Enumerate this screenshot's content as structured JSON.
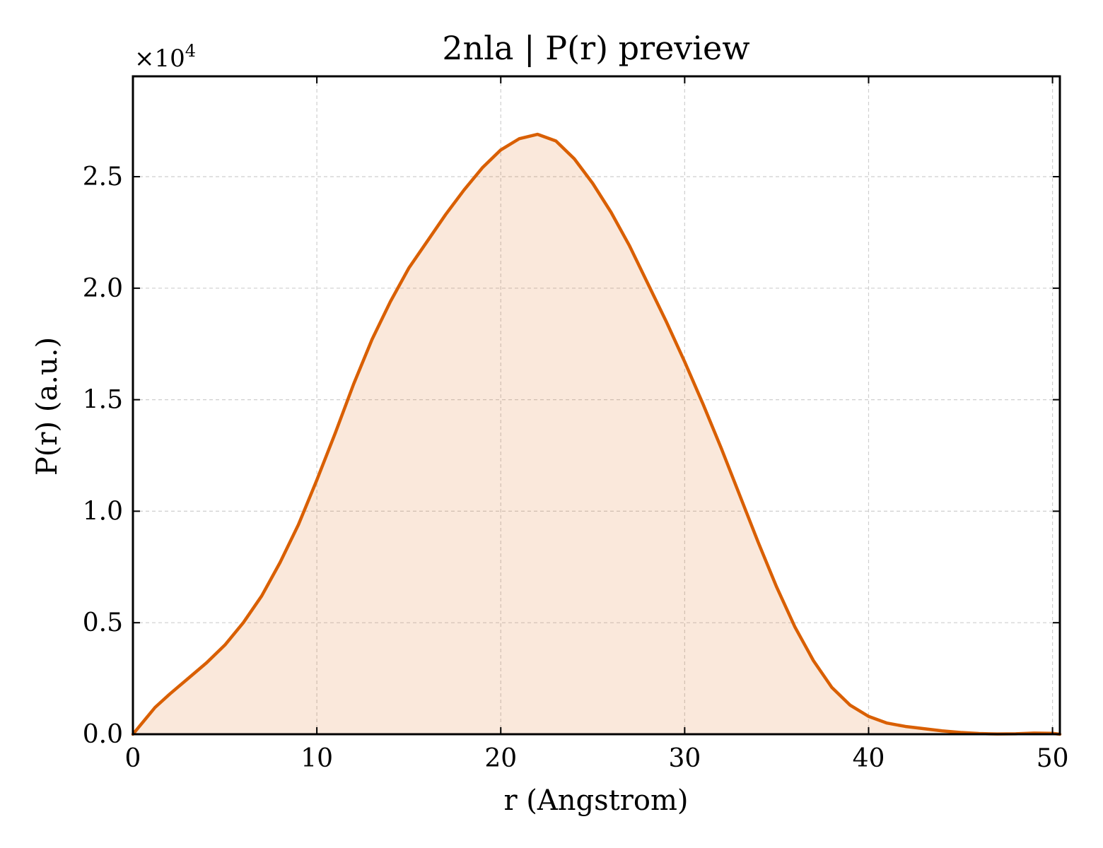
{
  "chart_data": {
    "type": "area",
    "title": "2nla | P(r) preview",
    "xlabel": "r (Angstrom)",
    "ylabel": "P(r) (a.u.)",
    "y_multiplier_label": "×10",
    "y_multiplier_exponent": "4",
    "xlim": [
      0,
      50.4
    ],
    "ylim": [
      0,
      2.95
    ],
    "x_ticks": [
      0,
      10,
      20,
      30,
      40,
      50
    ],
    "x_tick_labels": [
      "0",
      "10",
      "20",
      "30",
      "40",
      "50"
    ],
    "y_ticks": [
      0.0,
      0.5,
      1.0,
      1.5,
      2.0,
      2.5
    ],
    "y_tick_labels": [
      "0.0",
      "0.5",
      "1.0",
      "1.5",
      "2.0",
      "2.5"
    ],
    "grid": true,
    "series": [
      {
        "color": "#d95f02",
        "fill_color": "#d95f02",
        "fill_opacity": 0.14,
        "x": [
          0,
          0.6,
          1.2,
          2,
          3,
          4,
          5,
          6,
          7,
          8,
          9,
          10,
          11,
          12,
          13,
          14,
          15,
          16,
          17,
          18,
          19,
          20,
          21,
          22,
          23,
          24,
          25,
          26,
          27,
          28,
          29,
          30,
          31,
          32,
          33,
          34,
          35,
          36,
          37,
          38,
          39,
          40,
          41,
          42,
          43,
          44,
          45,
          46,
          47,
          48,
          49,
          50,
          50.4
        ],
        "y": [
          0.0,
          0.06,
          0.12,
          0.18,
          0.25,
          0.32,
          0.4,
          0.5,
          0.62,
          0.77,
          0.94,
          1.14,
          1.35,
          1.57,
          1.77,
          1.94,
          2.09,
          2.21,
          2.33,
          2.44,
          2.54,
          2.62,
          2.67,
          2.69,
          2.66,
          2.58,
          2.47,
          2.34,
          2.19,
          2.02,
          1.85,
          1.67,
          1.48,
          1.28,
          1.07,
          0.86,
          0.66,
          0.48,
          0.33,
          0.21,
          0.13,
          0.08,
          0.05,
          0.035,
          0.025,
          0.015,
          0.008,
          0.003,
          0.001,
          0.002,
          0.005,
          0.004,
          0.0
        ]
      }
    ]
  }
}
